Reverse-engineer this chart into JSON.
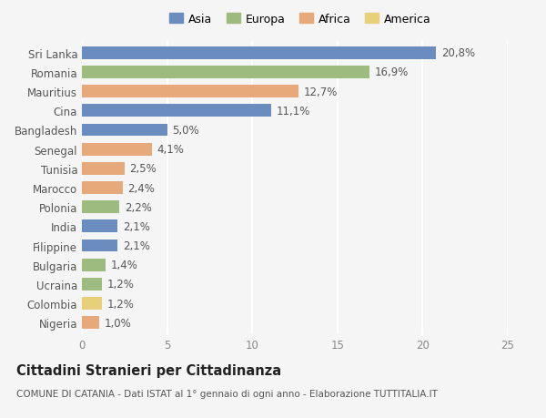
{
  "countries": [
    "Sri Lanka",
    "Romania",
    "Mauritius",
    "Cina",
    "Bangladesh",
    "Senegal",
    "Tunisia",
    "Marocco",
    "Polonia",
    "India",
    "Filippine",
    "Bulgaria",
    "Ucraina",
    "Colombia",
    "Nigeria"
  ],
  "values": [
    20.8,
    16.9,
    12.7,
    11.1,
    5.0,
    4.1,
    2.5,
    2.4,
    2.2,
    2.1,
    2.1,
    1.4,
    1.2,
    1.2,
    1.0
  ],
  "labels": [
    "20,8%",
    "16,9%",
    "12,7%",
    "11,1%",
    "5,0%",
    "4,1%",
    "2,5%",
    "2,4%",
    "2,2%",
    "2,1%",
    "2,1%",
    "1,4%",
    "1,2%",
    "1,2%",
    "1,0%"
  ],
  "continents": [
    "Asia",
    "Europa",
    "Africa",
    "Asia",
    "Asia",
    "Africa",
    "Africa",
    "Africa",
    "Europa",
    "Asia",
    "Asia",
    "Europa",
    "Europa",
    "America",
    "Africa"
  ],
  "colors": {
    "Asia": "#6b8cbf",
    "Europa": "#9dba7f",
    "Africa": "#e8a97a",
    "America": "#e8d07a"
  },
  "xlim": [
    0,
    25
  ],
  "xticks": [
    0,
    5,
    10,
    15,
    20,
    25
  ],
  "title": "Cittadini Stranieri per Cittadinanza",
  "subtitle": "COMUNE DI CATANIA - Dati ISTAT al 1° gennaio di ogni anno - Elaborazione TUTTITALIA.IT",
  "background_color": "#f5f5f5",
  "grid_color": "#ffffff",
  "bar_height": 0.65,
  "label_fontsize": 8.5,
  "tick_fontsize": 8.5,
  "title_fontsize": 10.5,
  "subtitle_fontsize": 7.5
}
